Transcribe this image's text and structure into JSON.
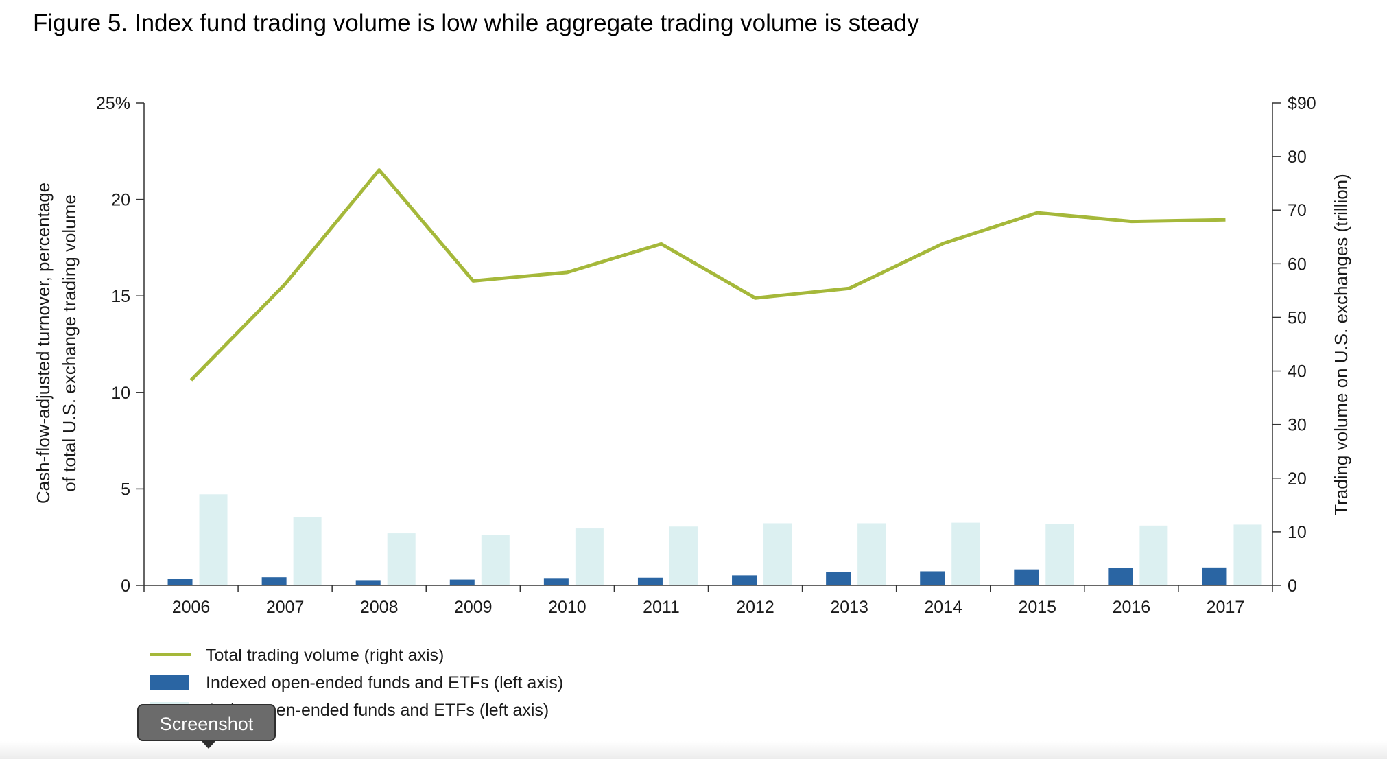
{
  "title": "Figure 5. Index fund trading volume is low while aggregate trading volume is steady",
  "tooltip": {
    "label": "Screenshot"
  },
  "chart_data": {
    "type": "bar",
    "categories": [
      "2006",
      "2007",
      "2008",
      "2009",
      "2010",
      "2011",
      "2012",
      "2013",
      "2014",
      "2015",
      "2016",
      "2017"
    ],
    "left_axis": {
      "label_line1": "Cash-flow-adjusted turnover, percentage",
      "label_line2": "of total U.S. exchange trading volume",
      "ylim": [
        0,
        25
      ],
      "ticks": [
        0,
        5,
        10,
        15,
        20,
        25
      ],
      "tick_labels": [
        "0",
        "5",
        "10",
        "15",
        "20",
        "25%"
      ]
    },
    "right_axis": {
      "label": "Trading volume on U.S. exchanges (trillion)",
      "ylim": [
        0,
        90
      ],
      "ticks": [
        0,
        10,
        20,
        30,
        40,
        50,
        60,
        70,
        80,
        90
      ],
      "tick_labels": [
        "0",
        "10",
        "20",
        "30",
        "40",
        "50",
        "60",
        "70",
        "80",
        "$90"
      ]
    },
    "series": [
      {
        "name": "Total trading volume (right axis)",
        "type": "line",
        "axis": "right",
        "color": "#a5b83a",
        "values": [
          38.3,
          56.2,
          77.5,
          56.8,
          58.4,
          63.7,
          53.6,
          55.4,
          63.8,
          69.5,
          67.9,
          68.2
        ]
      },
      {
        "name": "Indexed open-ended funds and ETFs (left axis)",
        "type": "bar",
        "axis": "left",
        "color": "#2a65a3",
        "values": [
          0.35,
          0.42,
          0.27,
          0.3,
          0.38,
          0.4,
          0.52,
          0.7,
          0.73,
          0.83,
          0.9,
          0.93
        ]
      },
      {
        "name": "Active open-ended funds and ETFs (left axis)",
        "type": "bar",
        "axis": "left",
        "color": "#dcf0f1",
        "values": [
          4.72,
          3.55,
          2.7,
          2.62,
          2.95,
          3.05,
          3.22,
          3.22,
          3.25,
          3.18,
          3.1,
          3.15
        ]
      }
    ],
    "grid": false,
    "legend_position": "bottom-left"
  }
}
